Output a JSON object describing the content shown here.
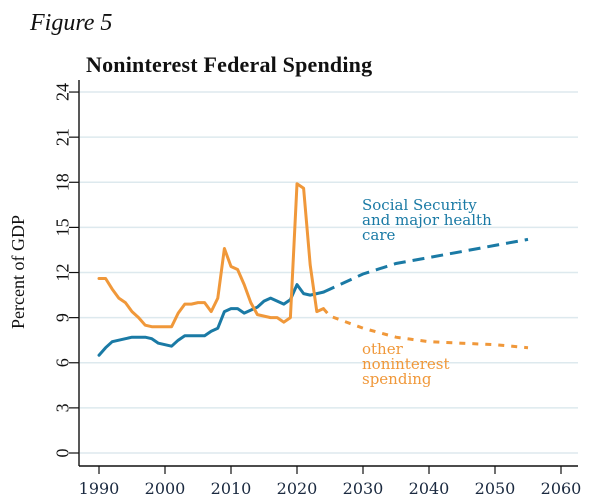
{
  "figure_label": "Figure 5",
  "chart_data": {
    "type": "line",
    "title": "Noninterest Federal Spending",
    "xlabel": "",
    "ylabel": "Percent of GDP",
    "xlim": [
      1987,
      2063
    ],
    "ylim": [
      -0.8,
      25
    ],
    "xticks": [
      1990,
      2000,
      2010,
      2020,
      2030,
      2040,
      2050,
      2060
    ],
    "yticks": [
      0,
      3,
      6,
      9,
      12,
      15,
      18,
      21,
      24
    ],
    "grid": "horizontal",
    "series": [
      {
        "name": "Social Security and major health care",
        "color": "#1a7aa5",
        "label_lines": [
          "Social Security",
          "and major health",
          "care"
        ],
        "historical": {
          "x": [
            1990,
            1991,
            1992,
            1993,
            1994,
            1995,
            1996,
            1997,
            1998,
            1999,
            2000,
            2001,
            2002,
            2003,
            2004,
            2005,
            2006,
            2007,
            2008,
            2009,
            2010,
            2011,
            2012,
            2013,
            2014,
            2015,
            2016,
            2017,
            2018,
            2019,
            2020,
            2021,
            2022,
            2023,
            2024
          ],
          "y": [
            6.5,
            7.0,
            7.4,
            7.5,
            7.6,
            7.7,
            7.7,
            7.7,
            7.6,
            7.3,
            7.2,
            7.1,
            7.5,
            7.8,
            7.8,
            7.8,
            7.8,
            8.1,
            8.3,
            9.4,
            9.6,
            9.6,
            9.3,
            9.5,
            9.7,
            10.1,
            10.3,
            10.1,
            9.9,
            10.2,
            11.2,
            10.6,
            10.5,
            10.6,
            10.7
          ]
        },
        "projected": {
          "x": [
            2024,
            2025,
            2030,
            2035,
            2040,
            2045,
            2050,
            2055
          ],
          "y": [
            10.7,
            10.9,
            11.9,
            12.6,
            13.0,
            13.4,
            13.8,
            14.2
          ]
        }
      },
      {
        "name": "other noninterest spending",
        "color": "#f0983a",
        "label_lines": [
          "other",
          "noninterest",
          "spending"
        ],
        "historical": {
          "x": [
            1990,
            1991,
            1992,
            1993,
            1994,
            1995,
            1996,
            1997,
            1998,
            1999,
            2000,
            2001,
            2002,
            2003,
            2004,
            2005,
            2006,
            2007,
            2008,
            2009,
            2010,
            2011,
            2012,
            2013,
            2014,
            2015,
            2016,
            2017,
            2018,
            2019,
            2020,
            2021,
            2022,
            2023,
            2024
          ],
          "y": [
            11.6,
            11.6,
            10.9,
            10.3,
            10.0,
            9.4,
            9.0,
            8.5,
            8.4,
            8.4,
            8.4,
            8.4,
            9.3,
            9.9,
            9.9,
            10.0,
            10.0,
            9.4,
            10.3,
            13.6,
            12.4,
            12.2,
            11.2,
            10.0,
            9.2,
            9.1,
            9.0,
            9.0,
            8.7,
            9.0,
            17.9,
            17.6,
            12.5,
            9.4,
            9.6
          ]
        },
        "projected": {
          "x": [
            2024,
            2025,
            2030,
            2035,
            2040,
            2045,
            2050,
            2055
          ],
          "y": [
            9.6,
            9.1,
            8.3,
            7.7,
            7.4,
            7.3,
            7.2,
            7.0
          ]
        }
      }
    ]
  }
}
